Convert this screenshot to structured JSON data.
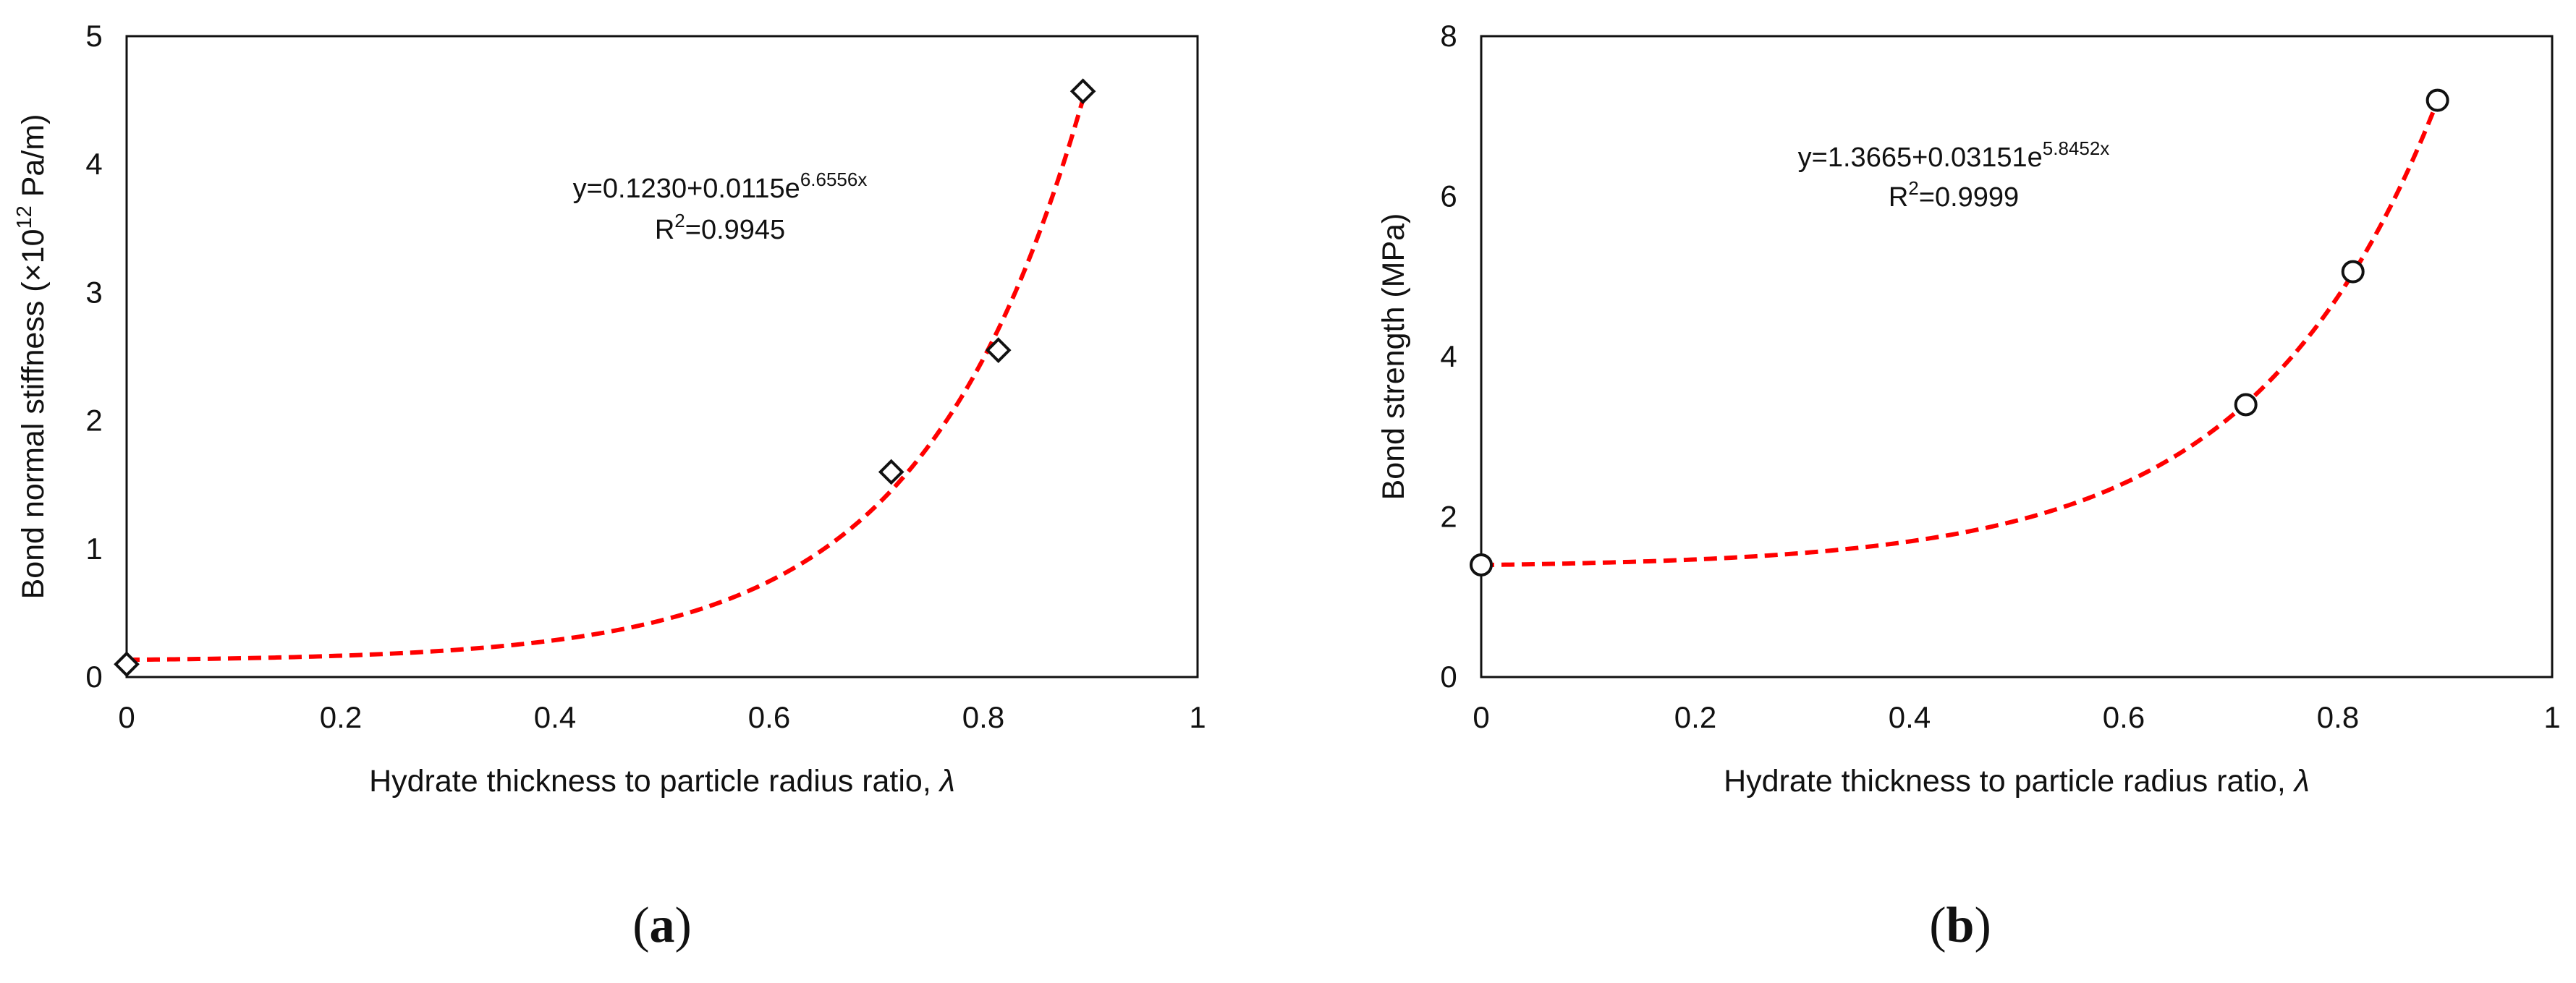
{
  "chart_data": [
    {
      "type": "scatter",
      "title": "",
      "xlabel": "Hydrate thickness to particle radius ratio, ",
      "xlabel_symbol": "λ",
      "ylabel_pre": "Bond normal stiffness (×10",
      "ylabel_sup": "12",
      "ylabel_post": " Pa/m)",
      "xlim": [
        0,
        1
      ],
      "ylim": [
        0,
        5
      ],
      "xticks": [
        "0",
        "0.2",
        "0.4",
        "0.6",
        "0.8",
        "1"
      ],
      "yticks": [
        "0",
        "1",
        "2",
        "3",
        "4",
        "5"
      ],
      "marker": "diamond",
      "points": {
        "x": [
          0,
          0.714,
          0.814,
          0.893
        ],
        "y": [
          0.1,
          1.6,
          2.55,
          4.57
        ]
      },
      "fit": {
        "a": 0.123,
        "b": 0.0115,
        "c": 6.6556,
        "color": "#ff0000",
        "style": "dashed"
      },
      "equation_main": "y=0.1230+0.0115e",
      "equation_sup": "6.6556x",
      "r2_pre": "R",
      "r2_sup": "2",
      "r2_post": "=0.9945",
      "caption_open": "(",
      "caption_letter": "a",
      "caption_close": ")"
    },
    {
      "type": "scatter",
      "title": "",
      "xlabel": "Hydrate thickness to particle radius ratio, ",
      "xlabel_symbol": "λ",
      "ylabel": "Bond strength (MPa)",
      "xlim": [
        0,
        1
      ],
      "ylim": [
        0,
        8
      ],
      "xticks": [
        "0",
        "0.2",
        "0.4",
        "0.6",
        "0.8",
        "1"
      ],
      "yticks": [
        "0",
        "2",
        "4",
        "6",
        "8"
      ],
      "marker": "circle",
      "points": {
        "x": [
          0,
          0.714,
          0.814,
          0.893
        ],
        "y": [
          1.4,
          3.4,
          5.06,
          7.2
        ]
      },
      "fit": {
        "a": 1.3665,
        "b": 0.03151,
        "c": 5.8452,
        "color": "#ff0000",
        "style": "dashed"
      },
      "equation_main": "y=1.3665+0.03151e",
      "equation_sup": "5.8452x",
      "r2_pre": "R",
      "r2_sup": "2",
      "r2_post": "=0.9999",
      "caption_open": "(",
      "caption_letter": "b",
      "caption_close": ")"
    }
  ]
}
